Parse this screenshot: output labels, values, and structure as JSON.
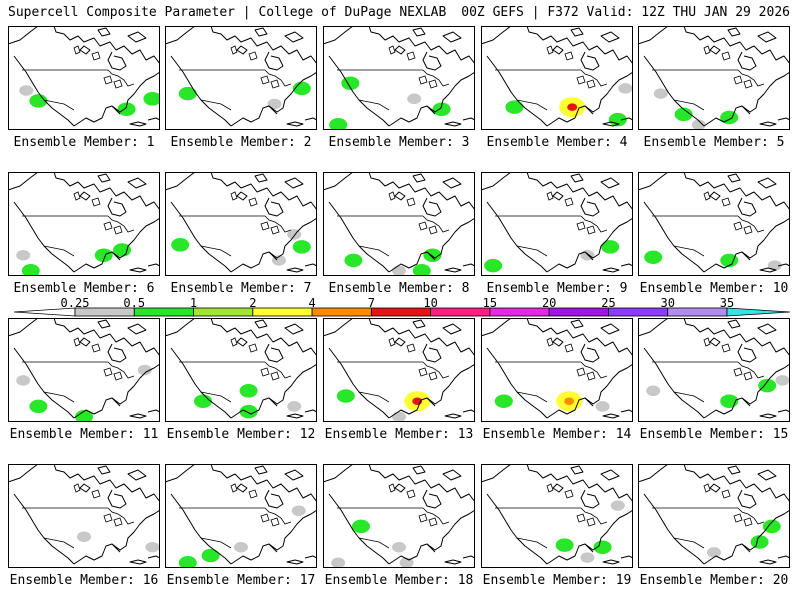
{
  "header": {
    "left": "Supercell Composite Parameter | College of DuPage NEXLAB",
    "right": "00Z GEFS | F372 Valid: 12Z THU JAN 29 2026"
  },
  "colorbar": {
    "ticks": [
      "0.25",
      "0.5",
      "1",
      "2",
      "4",
      "7",
      "10",
      "15",
      "20",
      "25",
      "30",
      "35"
    ],
    "colors": [
      "#ffffff",
      "#c8c8c8",
      "#28e628",
      "#a0e632",
      "#ffff32",
      "#ff8c00",
      "#e61414",
      "#ff1e82",
      "#e628e6",
      "#a014e6",
      "#8c3cff",
      "#b48cf0",
      "#32e6e6"
    ]
  },
  "map_colors": {
    "land": "#ffffff",
    "coast": "#000000",
    "light": "#c8c8c8",
    "green": "#28e628",
    "lime": "#a0e632",
    "yellow": "#ffff32",
    "orange": "#ff8c00",
    "red": "#e61414"
  },
  "members": [
    {
      "label": "Ensemble Member: 1",
      "blobs": [
        [
          "light",
          0.12,
          0.62
        ],
        [
          "green",
          0.2,
          0.72
        ],
        [
          "green",
          0.95,
          0.7
        ],
        [
          "green",
          0.78,
          0.8
        ]
      ]
    },
    {
      "label": "Ensemble Member: 2",
      "blobs": [
        [
          "green",
          0.15,
          0.65
        ],
        [
          "green",
          0.9,
          0.6
        ],
        [
          "light",
          0.72,
          0.75
        ]
      ]
    },
    {
      "label": "Ensemble Member: 3",
      "blobs": [
        [
          "green",
          0.18,
          0.55
        ],
        [
          "green",
          0.78,
          0.8
        ],
        [
          "light",
          0.6,
          0.7
        ],
        [
          "green",
          0.1,
          0.95
        ]
      ]
    },
    {
      "label": "Ensemble Member: 4",
      "blobs": [
        [
          "green",
          0.22,
          0.78
        ],
        [
          "green",
          0.6,
          0.8
        ],
        [
          "red",
          0.6,
          0.78
        ],
        [
          "light",
          0.95,
          0.6
        ],
        [
          "green",
          0.9,
          0.9
        ]
      ]
    },
    {
      "label": "Ensemble Member: 5",
      "blobs": [
        [
          "light",
          0.15,
          0.65
        ],
        [
          "green",
          0.3,
          0.85
        ],
        [
          "green",
          0.6,
          0.88
        ],
        [
          "light",
          0.4,
          0.95
        ]
      ]
    },
    {
      "label": "Ensemble Member: 6",
      "blobs": [
        [
          "light",
          0.1,
          0.8
        ],
        [
          "green",
          0.15,
          0.95
        ],
        [
          "green",
          0.63,
          0.8
        ],
        [
          "green",
          0.75,
          0.75
        ]
      ]
    },
    {
      "label": "Ensemble Member: 7",
      "blobs": [
        [
          "green",
          0.1,
          0.7
        ],
        [
          "green",
          0.9,
          0.72
        ],
        [
          "light",
          0.75,
          0.85
        ],
        [
          "light",
          0.85,
          0.6
        ]
      ]
    },
    {
      "label": "Ensemble Member: 8",
      "blobs": [
        [
          "green",
          0.2,
          0.85
        ],
        [
          "green",
          0.72,
          0.8
        ],
        [
          "green",
          0.65,
          0.95
        ],
        [
          "light",
          0.5,
          0.95
        ]
      ]
    },
    {
      "label": "Ensemble Member: 9",
      "blobs": [
        [
          "green",
          0.08,
          0.9
        ],
        [
          "light",
          0.7,
          0.8
        ],
        [
          "green",
          0.85,
          0.72
        ]
      ]
    },
    {
      "label": "Ensemble Member: 10",
      "blobs": [
        [
          "green",
          0.1,
          0.82
        ],
        [
          "green",
          0.6,
          0.85
        ],
        [
          "light",
          0.9,
          0.9
        ]
      ]
    },
    {
      "label": "Ensemble Member: 11",
      "blobs": [
        [
          "light",
          0.1,
          0.6
        ],
        [
          "green",
          0.2,
          0.85
        ],
        [
          "green",
          0.5,
          0.95
        ],
        [
          "light",
          0.9,
          0.5
        ]
      ]
    },
    {
      "label": "Ensemble Member: 12",
      "blobs": [
        [
          "green",
          0.25,
          0.8
        ],
        [
          "green",
          0.55,
          0.7
        ],
        [
          "green",
          0.55,
          0.9
        ],
        [
          "light",
          0.85,
          0.85
        ]
      ]
    },
    {
      "label": "Ensemble Member: 13",
      "blobs": [
        [
          "green",
          0.15,
          0.75
        ],
        [
          "green",
          0.62,
          0.78
        ],
        [
          "red",
          0.62,
          0.8
        ],
        [
          "light",
          0.5,
          0.95
        ]
      ]
    },
    {
      "label": "Ensemble Member: 14",
      "blobs": [
        [
          "green",
          0.15,
          0.8
        ],
        [
          "green",
          0.58,
          0.78
        ],
        [
          "orange",
          0.58,
          0.8
        ],
        [
          "light",
          0.8,
          0.85
        ]
      ]
    },
    {
      "label": "Ensemble Member: 15",
      "blobs": [
        [
          "light",
          0.1,
          0.7
        ],
        [
          "green",
          0.6,
          0.8
        ],
        [
          "green",
          0.85,
          0.65
        ],
        [
          "light",
          0.95,
          0.6
        ]
      ]
    },
    {
      "label": "Ensemble Member: 16",
      "blobs": [
        [
          "light",
          0.95,
          0.8
        ],
        [
          "light",
          0.5,
          0.7
        ]
      ]
    },
    {
      "label": "Ensemble Member: 17",
      "blobs": [
        [
          "green",
          0.3,
          0.88
        ],
        [
          "green",
          0.15,
          0.95
        ],
        [
          "light",
          0.5,
          0.8
        ],
        [
          "light",
          0.88,
          0.45
        ]
      ]
    },
    {
      "label": "Ensemble Member: 18",
      "blobs": [
        [
          "green",
          0.25,
          0.6
        ],
        [
          "light",
          0.5,
          0.8
        ],
        [
          "light",
          0.55,
          0.95
        ],
        [
          "light",
          0.1,
          0.95
        ]
      ]
    },
    {
      "label": "Ensemble Member: 19",
      "blobs": [
        [
          "green",
          0.55,
          0.78
        ],
        [
          "green",
          0.8,
          0.8
        ],
        [
          "light",
          0.7,
          0.9
        ],
        [
          "light",
          0.9,
          0.4
        ]
      ]
    },
    {
      "label": "Ensemble Member: 20",
      "blobs": [
        [
          "green",
          0.88,
          0.6
        ],
        [
          "green",
          0.8,
          0.75
        ],
        [
          "light",
          0.5,
          0.85
        ]
      ]
    }
  ]
}
